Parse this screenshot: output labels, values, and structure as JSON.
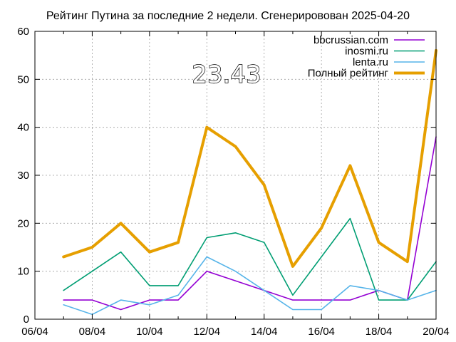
{
  "chart_data": {
    "type": "line",
    "title": "Рейтинг Путина за последние 2 недели. Сгенерировован 2025-04-20",
    "xlabel": "",
    "ylabel": "",
    "x": [
      "2025-04-07",
      "2025-04-08",
      "2025-04-09",
      "2025-04-10",
      "2025-04-11",
      "2025-04-12",
      "2025-04-13",
      "2025-04-14",
      "2025-04-15",
      "2025-04-16",
      "2025-04-17",
      "2025-04-18",
      "2025-04-19",
      "2025-04-20"
    ],
    "xlim": [
      "2025-04-06",
      "2025-04-20"
    ],
    "xticks": [
      {
        "date": "2025-04-06",
        "label": "06/04"
      },
      {
        "date": "2025-04-08",
        "label": "08/04"
      },
      {
        "date": "2025-04-10",
        "label": "10/04"
      },
      {
        "date": "2025-04-12",
        "label": "12/04"
      },
      {
        "date": "2025-04-14",
        "label": "14/04"
      },
      {
        "date": "2025-04-16",
        "label": "16/04"
      },
      {
        "date": "2025-04-18",
        "label": "18/04"
      },
      {
        "date": "2025-04-20",
        "label": "20/04"
      }
    ],
    "ylim": [
      0,
      60
    ],
    "yticks": [
      0,
      10,
      20,
      30,
      40,
      50,
      60
    ],
    "grid": true,
    "legend_position": "top-right",
    "annotation": "23.43",
    "series": [
      {
        "name": "bbcrussian.com",
        "color": "#9400d3",
        "values": [
          4,
          4,
          2,
          4,
          4,
          10,
          8,
          6,
          4,
          4,
          4,
          6,
          4,
          38
        ]
      },
      {
        "name": "inosmi.ru",
        "color": "#009e73",
        "values": [
          6,
          10,
          14,
          7,
          7,
          17,
          18,
          16,
          5,
          13,
          21,
          4,
          4,
          12
        ]
      },
      {
        "name": "lenta.ru",
        "color": "#56b4e9",
        "values": [
          3,
          1,
          4,
          3,
          5,
          13,
          10,
          6,
          2,
          2,
          7,
          6,
          4,
          6
        ]
      },
      {
        "name": "Полный рейтинг",
        "color": "#e69f00",
        "values": [
          13,
          15,
          20,
          14,
          16,
          40,
          36,
          28,
          11,
          19,
          32,
          16,
          12,
          56
        ]
      }
    ]
  }
}
